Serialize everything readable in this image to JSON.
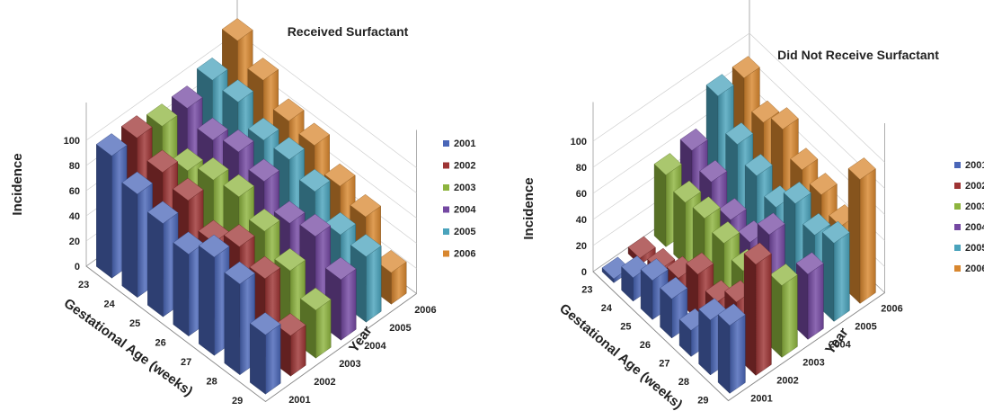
{
  "chart_data": [
    {
      "type": "bar3d",
      "title": "Received Surfactant",
      "xlabel": "Gestational Age (weeks)",
      "ylabel": "Incidence",
      "depth_label": "Year",
      "ylim": [
        0,
        100
      ],
      "yticks": [
        "0",
        "20",
        "40",
        "60",
        "80",
        "100"
      ],
      "categories": [
        "23",
        "24",
        "25",
        "26",
        "27",
        "28",
        "29"
      ],
      "legend_position": "right",
      "series": [
        {
          "name": "2001",
          "color": "#4a66b8",
          "values": [
            97,
            82,
            74,
            65,
            78,
            72,
            47
          ]
        },
        {
          "name": "2002",
          "color": "#9e3434",
          "values": [
            97,
            85,
            78,
            60,
            72,
            62,
            32
          ]
        },
        {
          "name": "2003",
          "color": "#8db43e",
          "values": [
            92,
            72,
            80,
            82,
            70,
            54,
            38
          ]
        },
        {
          "name": "2004",
          "color": "#7448a2",
          "values": [
            92,
            82,
            88,
            80,
            62,
            67,
            48
          ]
        },
        {
          "name": "2005",
          "color": "#4aa3bc",
          "values": [
            100,
            98,
            83,
            83,
            73,
            54,
            52
          ]
        },
        {
          "name": "2006",
          "color": "#d8872f",
          "values": [
            117,
            101,
            84,
            80,
            63,
            54,
            25
          ]
        }
      ]
    },
    {
      "type": "bar3d",
      "title": "Did Not Receive Surfactant",
      "xlabel": "Gestational Age (weeks)",
      "ylabel": "Incidence",
      "depth_label": "Year",
      "ylim": [
        0,
        100
      ],
      "yticks": [
        "0",
        "20",
        "40",
        "60",
        "80",
        "100"
      ],
      "categories": [
        "23",
        "24",
        "25",
        "26",
        "27",
        "28",
        "29"
      ],
      "legend_position": "right",
      "series": [
        {
          "name": "2001",
          "color": "#4a66b8",
          "values": [
            3,
            18,
            30,
            30,
            20,
            42,
            52
          ]
        },
        {
          "name": "2002",
          "color": "#9e3434",
          "values": [
            5,
            10,
            18,
            35,
            28,
            42,
            85
          ]
        },
        {
          "name": "2003",
          "color": "#8db43e",
          "values": [
            55,
            48,
            50,
            45,
            38,
            28,
            55
          ]
        },
        {
          "name": "2004",
          "color": "#7448a2",
          "values": [
            60,
            50,
            35,
            32,
            52,
            22,
            50
          ]
        },
        {
          "name": "2005",
          "color": "#4aa3bc",
          "values": [
            88,
            65,
            55,
            45,
            62,
            52,
            60
          ]
        },
        {
          "name": "2006",
          "color": "#d8872f",
          "values": [
            88,
            68,
            77,
            60,
            55,
            45,
            95
          ]
        }
      ]
    }
  ],
  "legend": [
    "2001",
    "2002",
    "2003",
    "2004",
    "2005",
    "2006"
  ]
}
